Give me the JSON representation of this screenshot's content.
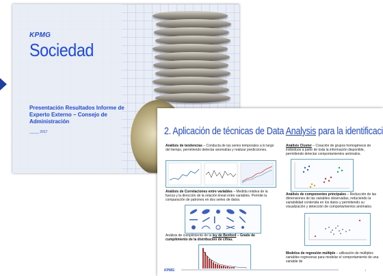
{
  "slide1": {
    "logo": "KPMG",
    "title": "Sociedad",
    "subtitle": "Presentación Resultados Informe de Experto Externo – Consejo de Administración",
    "date": "_____ 2017"
  },
  "slide2": {
    "title_pre": "2. Aplicación de técnicas de Data ",
    "title_link": "Analysis",
    "title_post": " para la identificación de fraude",
    "sections": {
      "tendencias_head": "Análisis de tendencias",
      "tendencias_body": " – Conducta de las series temporales a lo largo del tiempo, permitiendo detectar anomalías y realizar predicciones.",
      "cluster_head": "Análisis Cluster",
      "cluster_body": " – Creación de grupos homogéneos de individuos a partir de toda la información disponible, permitiendo detectar comportamientos anómalos.",
      "correl_head": "Análisis de Correlaciones entre variables",
      "correl_body": " – Medida relativa de la fuerza y la dirección de la relación lineal entre variables. Permite la comparación de patrones en dos series de datos.",
      "pca_head": "Análisis de componentes principales",
      "pca_body": " – Reducción de las dimensiones de las variables observadas, reduciendo la variabilidad contenida en los datos y permitiendo su visualización y detección de comportamientos anómalos.",
      "benford_pre": "Análisis de cumplimiento de la ",
      "benford_head": "ley de Benford",
      "benford_post": " – Grado de cumplimiento de la distribución de cifras.",
      "regresion_head": "Modelos de regresión múltiple",
      "regresion_body": " – utilización de múltiples variables regresoras para modelar el comportamiento de una variable de"
    },
    "logo": "KPMG",
    "page_number": "1"
  }
}
